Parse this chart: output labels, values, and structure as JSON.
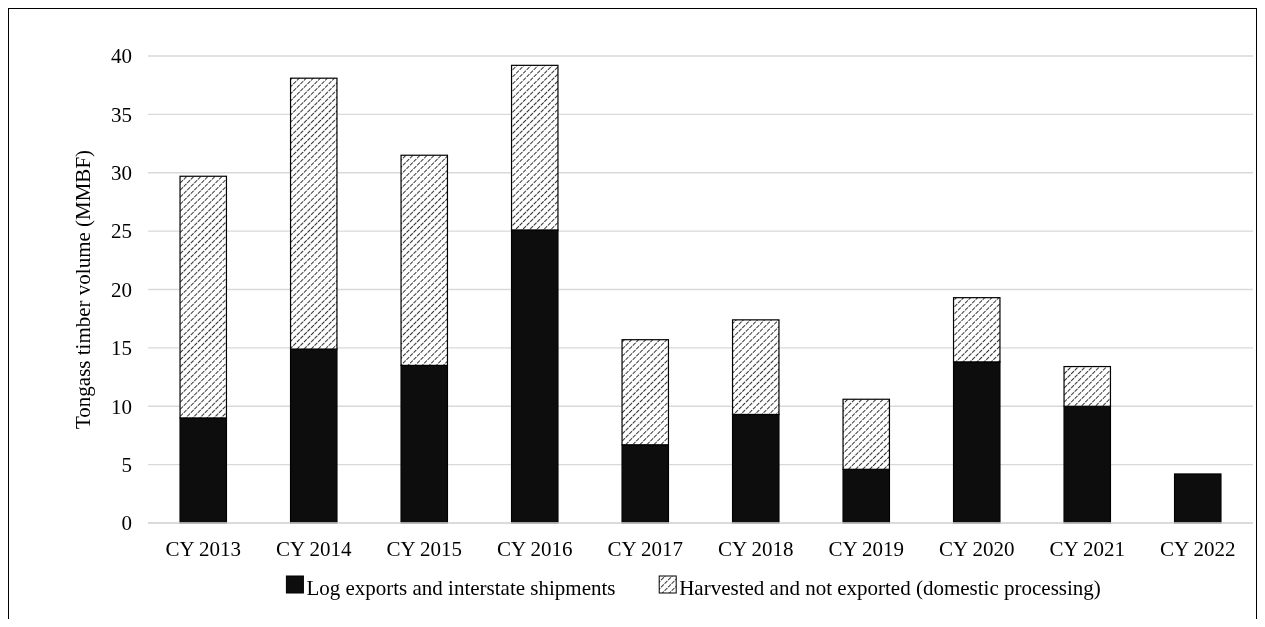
{
  "chart_data": {
    "type": "bar",
    "stacked": true,
    "ylabel": "Tongass timber volume (MMBF)",
    "categories": [
      "CY 2013",
      "CY 2014",
      "CY 2015",
      "CY 2016",
      "CY 2017",
      "CY 2018",
      "CY 2019",
      "CY 2020",
      "CY 2021",
      "CY 2022"
    ],
    "series": [
      {
        "name": "Log exports and interstate shipments",
        "color": "#0d0d0d",
        "values": [
          9.0,
          14.9,
          13.5,
          25.1,
          6.7,
          9.3,
          4.6,
          13.8,
          10.0,
          4.2
        ]
      },
      {
        "name": "Harvested and not exported (domestic processing)",
        "color": "#000000",
        "values": [
          20.7,
          23.2,
          18.0,
          14.1,
          9.0,
          8.1,
          6.0,
          5.5,
          3.4,
          0
        ]
      }
    ],
    "ylim": [
      0,
      40
    ],
    "yticks": [
      0,
      5,
      10,
      15,
      20,
      25,
      30,
      35,
      40
    ],
    "grid": "y",
    "legend": "bottom"
  }
}
